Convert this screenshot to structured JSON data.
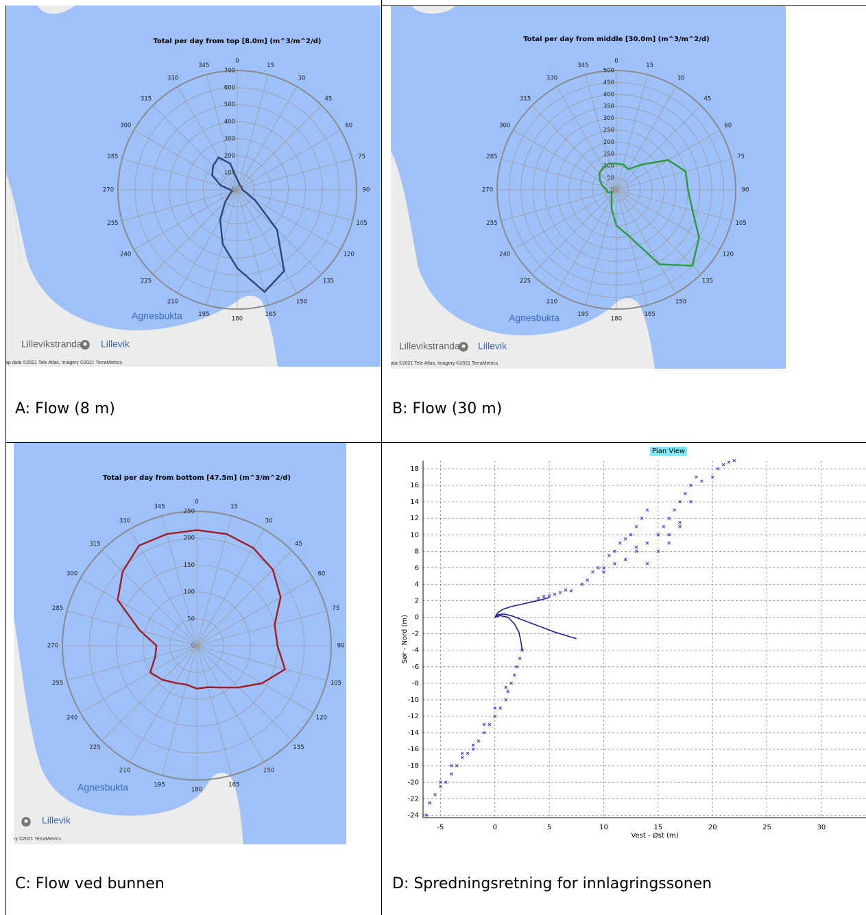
{
  "panels": [
    {
      "caption": "A: Flow (8 m)",
      "map_labels": [
        "Agnesbukta",
        "Lillevikstranda",
        "Lillevik",
        "ap data ©2021 Tele Atlas, Imagery ©2021 TerraMetrics"
      ]
    },
    {
      "caption": "B: Flow (30 m)",
      "map_labels": [
        "Agnesbukta",
        "Lillevikstranda",
        "Lillevik",
        "ata ©2021 Tele Atlas, Imagery ©2021 TerraMetrics"
      ]
    },
    {
      "caption": "C: Flow ved bunnen",
      "map_labels": [
        "Agnesbukta",
        "Lillevik",
        "ry ©2021 TerraMetrics"
      ]
    },
    {
      "caption": "D: Spredningsretning for innlagringssonen"
    }
  ],
  "chart_data": [
    {
      "type": "polar",
      "title": "Total per day from top [8.0m] (m^3/m^2/d)",
      "color": "#2e4a7a",
      "theta": [
        0,
        15,
        30,
        45,
        60,
        75,
        90,
        105,
        120,
        135,
        150,
        165,
        180,
        195,
        210,
        225,
        240,
        255,
        270,
        285,
        300,
        315,
        330,
        345
      ],
      "values": [
        60,
        40,
        30,
        30,
        30,
        30,
        30,
        50,
        120,
        330,
        550,
        620,
        460,
        330,
        200,
        100,
        50,
        30,
        40,
        100,
        170,
        200,
        220,
        160
      ],
      "rlim": [
        0,
        700
      ],
      "rticks": [
        0,
        100,
        200,
        300,
        400,
        500,
        600,
        700
      ]
    },
    {
      "type": "polar",
      "title": "Total per day from middle [30.0m] (m^3/m^2/d)",
      "color": "#2e9a3e",
      "theta": [
        0,
        15,
        30,
        45,
        60,
        75,
        90,
        105,
        120,
        135,
        150,
        165,
        180,
        195,
        210,
        225,
        240,
        255,
        270,
        285,
        300,
        315,
        330,
        345
      ],
      "values": [
        110,
        110,
        100,
        150,
        250,
        300,
        300,
        330,
        400,
        450,
        360,
        200,
        150,
        80,
        40,
        30,
        20,
        40,
        40,
        60,
        80,
        100,
        110,
        115
      ],
      "rlim": [
        0,
        500
      ],
      "rticks": [
        0,
        50,
        100,
        150,
        200,
        250,
        300,
        350,
        400,
        450,
        500
      ]
    },
    {
      "type": "polar",
      "title": "Total per day from bottom [47.5m] (m^3/m^2/d)",
      "color": "#a0202a",
      "theta": [
        0,
        15,
        30,
        45,
        60,
        75,
        90,
        105,
        120,
        135,
        150,
        165,
        180,
        195,
        210,
        225,
        240,
        255,
        270,
        285,
        300,
        315,
        330,
        345
      ],
      "values": [
        215,
        215,
        210,
        200,
        180,
        150,
        150,
        170,
        140,
        110,
        90,
        80,
        80,
        75,
        80,
        90,
        100,
        80,
        75,
        110,
        170,
        195,
        215,
        215
      ],
      "rlim": [
        0,
        250
      ],
      "rticks": [
        0,
        50,
        100,
        150,
        200,
        250
      ]
    },
    {
      "type": "scatter",
      "title": "Plan View",
      "x_label": "Vest - Øst (m)",
      "y_label": "Sør - Nord (m)",
      "xlim": [
        -6.6,
        34.1
      ],
      "ylim": [
        -24.3,
        19
      ],
      "grid": true,
      "xticks": [
        -5,
        0,
        5,
        10,
        15,
        20,
        25,
        30
      ],
      "yticks": [
        -24,
        -22,
        -20,
        -18,
        -16,
        -14,
        -12,
        -10,
        -8,
        -6,
        -4,
        -2,
        0,
        2,
        4,
        6,
        8,
        10,
        12,
        14,
        16,
        18
      ],
      "series": [
        {
          "mode": "markers",
          "color": "#2a2ae0",
          "x": [
            4,
            4.5,
            5,
            5.5,
            6,
            6.5,
            7,
            8,
            8.5,
            9,
            9.5,
            10,
            10.5,
            11,
            11.5,
            12,
            12.5,
            13,
            13.5,
            14,
            13,
            12,
            14,
            15,
            15.5,
            16,
            16.5,
            17,
            17.5,
            18,
            18.5,
            17,
            16,
            19,
            20,
            20.5,
            21,
            21.5,
            22,
            10,
            11,
            12,
            13,
            14,
            15,
            16,
            17,
            18
          ],
          "y": [
            2.3,
            2.5,
            2.6,
            2.8,
            3,
            3.3,
            3.2,
            4,
            4.5,
            5.5,
            6,
            6,
            7.5,
            8,
            9,
            9.5,
            10,
            11,
            12,
            13,
            8,
            7,
            6.5,
            10,
            11,
            12,
            13,
            14,
            15,
            16,
            17,
            11,
            9,
            16.5,
            17,
            18,
            18.5,
            18.8,
            19,
            5.5,
            6.5,
            7,
            8.5,
            9,
            8,
            10,
            11.5,
            14
          ]
        },
        {
          "mode": "markers",
          "color": "#2a2ae0",
          "x": [
            2.5,
            2.3,
            2,
            1.8,
            1.5,
            1.2,
            1,
            0.5,
            0,
            -0.5,
            -1,
            -1.5,
            -2,
            -2.5,
            -3,
            -3.5,
            -4,
            -4.5,
            -5,
            -5.5,
            -6,
            -6.3,
            2,
            1,
            0,
            -1,
            -2,
            -3,
            -4,
            -5
          ],
          "y": [
            -4,
            -5,
            -6,
            -7,
            -8,
            -9,
            -10,
            -11,
            -12,
            -13,
            -14,
            -15,
            -16,
            -16.5,
            -17,
            -18,
            -19,
            -20,
            -20.5,
            -21.5,
            -22.5,
            -24,
            -6,
            -8.5,
            -11,
            -13,
            -15.5,
            -16.5,
            -18,
            -20
          ]
        },
        {
          "mode": "line",
          "color": "#1a1aa0",
          "x": [
            0,
            0.3,
            0.8,
            1.5,
            2.5,
            3.5,
            4.5,
            5.5,
            6.5,
            7.5
          ],
          "y": [
            0,
            0.3,
            0.4,
            0.2,
            -0.3,
            -0.8,
            -1.3,
            -1.8,
            -2.2,
            -2.6
          ]
        },
        {
          "mode": "line",
          "color": "#1a1aa0",
          "x": [
            0,
            0.3,
            0.8,
            1.5,
            2.5,
            3.5,
            4.5,
            5
          ],
          "y": [
            0,
            0.6,
            1,
            1.3,
            1.6,
            1.9,
            2.2,
            2.4
          ]
        },
        {
          "mode": "line",
          "color": "#1a1aa0",
          "x": [
            0,
            0.5,
            1.2,
            1.8,
            2.2,
            2.4,
            2.5
          ],
          "y": [
            0,
            0.2,
            0,
            -0.8,
            -1.8,
            -3,
            -4
          ]
        }
      ]
    }
  ]
}
